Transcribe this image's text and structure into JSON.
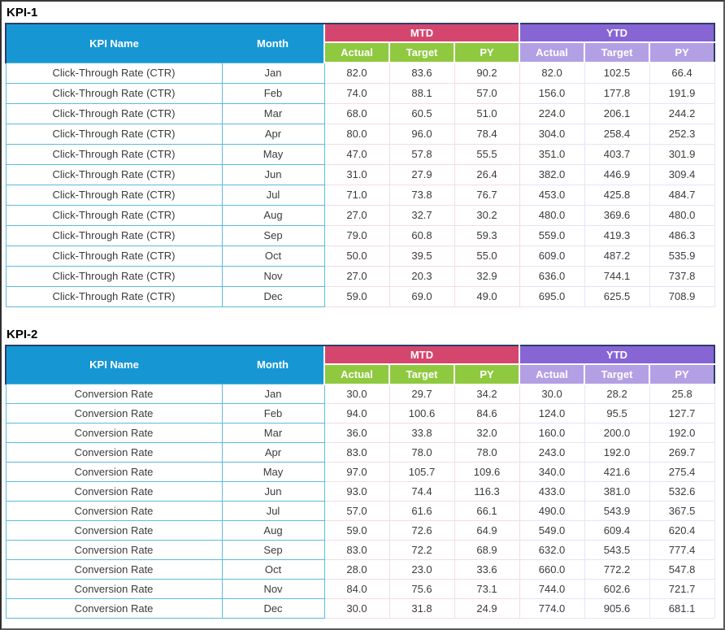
{
  "colors": {
    "header_blue": "#1697D4",
    "mtd_pink": "#D5466F",
    "ytd_purple": "#8765D5",
    "mtd_sub_green": "#8FC93F",
    "ytd_sub_lavender": "#B3A0E4",
    "row_border_cyan": "#5BBBDC",
    "header_outline_navy": "#2E3D66"
  },
  "tables": [
    {
      "title": "KPI-1",
      "headers": {
        "kpi_name": "KPI Name",
        "month": "Month",
        "mtd": "MTD",
        "ytd": "YTD",
        "sub": [
          "Actual",
          "Target",
          "PY"
        ]
      },
      "rows": [
        {
          "kpi": "Click-Through Rate (CTR)",
          "month": "Jan",
          "mtd": [
            "82.0",
            "83.6",
            "90.2"
          ],
          "ytd": [
            "82.0",
            "102.5",
            "66.4"
          ]
        },
        {
          "kpi": "Click-Through Rate (CTR)",
          "month": "Feb",
          "mtd": [
            "74.0",
            "88.1",
            "57.0"
          ],
          "ytd": [
            "156.0",
            "177.8",
            "191.9"
          ]
        },
        {
          "kpi": "Click-Through Rate (CTR)",
          "month": "Mar",
          "mtd": [
            "68.0",
            "60.5",
            "51.0"
          ],
          "ytd": [
            "224.0",
            "206.1",
            "244.2"
          ]
        },
        {
          "kpi": "Click-Through Rate (CTR)",
          "month": "Apr",
          "mtd": [
            "80.0",
            "96.0",
            "78.4"
          ],
          "ytd": [
            "304.0",
            "258.4",
            "252.3"
          ]
        },
        {
          "kpi": "Click-Through Rate (CTR)",
          "month": "May",
          "mtd": [
            "47.0",
            "57.8",
            "55.5"
          ],
          "ytd": [
            "351.0",
            "403.7",
            "301.9"
          ]
        },
        {
          "kpi": "Click-Through Rate (CTR)",
          "month": "Jun",
          "mtd": [
            "31.0",
            "27.9",
            "26.4"
          ],
          "ytd": [
            "382.0",
            "446.9",
            "309.4"
          ]
        },
        {
          "kpi": "Click-Through Rate (CTR)",
          "month": "Jul",
          "mtd": [
            "71.0",
            "73.8",
            "76.7"
          ],
          "ytd": [
            "453.0",
            "425.8",
            "484.7"
          ]
        },
        {
          "kpi": "Click-Through Rate (CTR)",
          "month": "Aug",
          "mtd": [
            "27.0",
            "32.7",
            "30.2"
          ],
          "ytd": [
            "480.0",
            "369.6",
            "480.0"
          ]
        },
        {
          "kpi": "Click-Through Rate (CTR)",
          "month": "Sep",
          "mtd": [
            "79.0",
            "60.8",
            "59.3"
          ],
          "ytd": [
            "559.0",
            "419.3",
            "486.3"
          ]
        },
        {
          "kpi": "Click-Through Rate (CTR)",
          "month": "Oct",
          "mtd": [
            "50.0",
            "39.5",
            "55.0"
          ],
          "ytd": [
            "609.0",
            "487.2",
            "535.9"
          ]
        },
        {
          "kpi": "Click-Through Rate (CTR)",
          "month": "Nov",
          "mtd": [
            "27.0",
            "20.3",
            "32.9"
          ],
          "ytd": [
            "636.0",
            "744.1",
            "737.8"
          ]
        },
        {
          "kpi": "Click-Through Rate (CTR)",
          "month": "Dec",
          "mtd": [
            "59.0",
            "69.0",
            "49.0"
          ],
          "ytd": [
            "695.0",
            "625.5",
            "708.9"
          ]
        }
      ]
    },
    {
      "title": "KPI-2",
      "headers": {
        "kpi_name": "KPI Name",
        "month": "Month",
        "mtd": "MTD",
        "ytd": "YTD",
        "sub": [
          "Actual",
          "Target",
          "PY"
        ]
      },
      "rows": [
        {
          "kpi": "Conversion Rate",
          "month": "Jan",
          "mtd": [
            "30.0",
            "29.7",
            "34.2"
          ],
          "ytd": [
            "30.0",
            "28.2",
            "25.8"
          ]
        },
        {
          "kpi": "Conversion Rate",
          "month": "Feb",
          "mtd": [
            "94.0",
            "100.6",
            "84.6"
          ],
          "ytd": [
            "124.0",
            "95.5",
            "127.7"
          ]
        },
        {
          "kpi": "Conversion Rate",
          "month": "Mar",
          "mtd": [
            "36.0",
            "33.8",
            "32.0"
          ],
          "ytd": [
            "160.0",
            "200.0",
            "192.0"
          ]
        },
        {
          "kpi": "Conversion Rate",
          "month": "Apr",
          "mtd": [
            "83.0",
            "78.0",
            "78.0"
          ],
          "ytd": [
            "243.0",
            "192.0",
            "269.7"
          ]
        },
        {
          "kpi": "Conversion Rate",
          "month": "May",
          "mtd": [
            "97.0",
            "105.7",
            "109.6"
          ],
          "ytd": [
            "340.0",
            "421.6",
            "275.4"
          ]
        },
        {
          "kpi": "Conversion Rate",
          "month": "Jun",
          "mtd": [
            "93.0",
            "74.4",
            "116.3"
          ],
          "ytd": [
            "433.0",
            "381.0",
            "532.6"
          ]
        },
        {
          "kpi": "Conversion Rate",
          "month": "Jul",
          "mtd": [
            "57.0",
            "61.6",
            "66.1"
          ],
          "ytd": [
            "490.0",
            "543.9",
            "367.5"
          ]
        },
        {
          "kpi": "Conversion Rate",
          "month": "Aug",
          "mtd": [
            "59.0",
            "72.6",
            "64.9"
          ],
          "ytd": [
            "549.0",
            "609.4",
            "620.4"
          ]
        },
        {
          "kpi": "Conversion Rate",
          "month": "Sep",
          "mtd": [
            "83.0",
            "72.2",
            "68.9"
          ],
          "ytd": [
            "632.0",
            "543.5",
            "777.4"
          ]
        },
        {
          "kpi": "Conversion Rate",
          "month": "Oct",
          "mtd": [
            "28.0",
            "23.0",
            "33.6"
          ],
          "ytd": [
            "660.0",
            "772.2",
            "547.8"
          ]
        },
        {
          "kpi": "Conversion Rate",
          "month": "Nov",
          "mtd": [
            "84.0",
            "75.6",
            "73.1"
          ],
          "ytd": [
            "744.0",
            "602.6",
            "721.7"
          ]
        },
        {
          "kpi": "Conversion Rate",
          "month": "Dec",
          "mtd": [
            "30.0",
            "31.8",
            "24.9"
          ],
          "ytd": [
            "774.0",
            "905.6",
            "681.1"
          ]
        }
      ]
    }
  ]
}
